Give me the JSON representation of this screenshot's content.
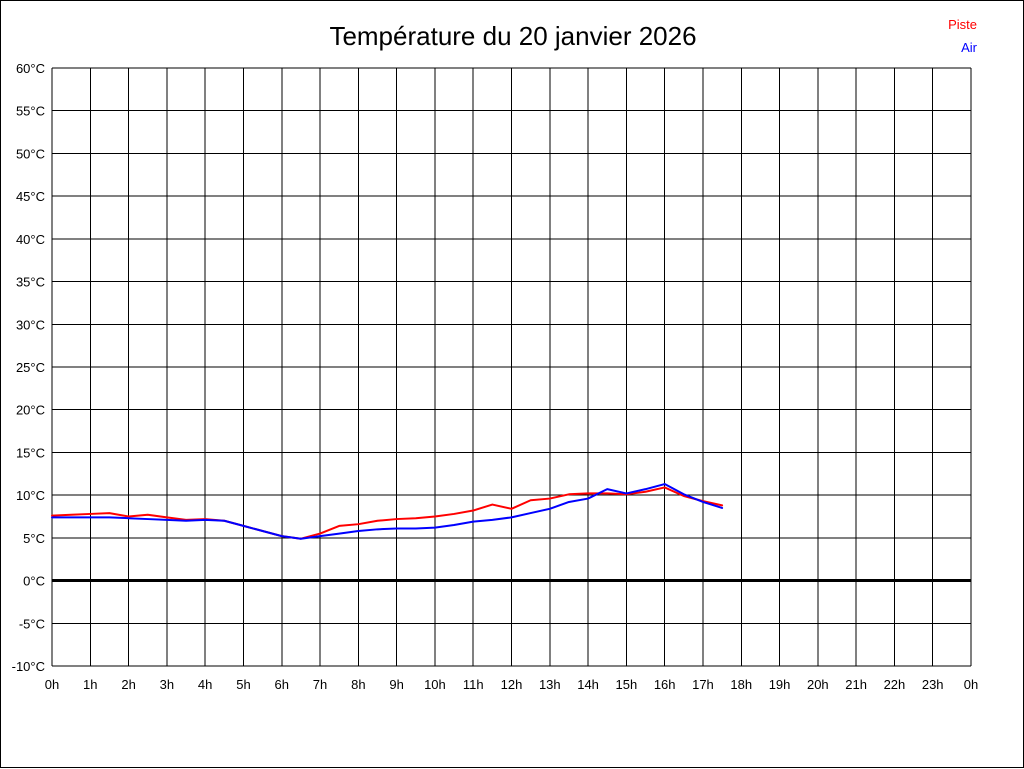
{
  "title": "Température du 20 janvier 2026",
  "legend": {
    "items": [
      {
        "label": "Piste",
        "color": "#ff0000"
      },
      {
        "label": "Air",
        "color": "#0000ff"
      }
    ]
  },
  "chart_data": {
    "type": "line",
    "title": "Température du 20 janvier 2026",
    "xlabel": "",
    "ylabel": "",
    "xlim": [
      0,
      24
    ],
    "ylim": [
      -10,
      60
    ],
    "grid": "on",
    "x_tick_step_hours": 1,
    "y_tick_step_degrees": 5,
    "bold_gridline_at_y": 0,
    "legend_position": "top-right",
    "x_tick_labels": [
      "0h",
      "1h",
      "2h",
      "3h",
      "4h",
      "5h",
      "6h",
      "7h",
      "8h",
      "9h",
      "10h",
      "11h",
      "12h",
      "13h",
      "14h",
      "15h",
      "16h",
      "17h",
      "18h",
      "19h",
      "20h",
      "21h",
      "22h",
      "23h",
      "0h"
    ],
    "y_tick_labels": [
      "60°C",
      "55°C",
      "50°C",
      "45°C",
      "40°C",
      "35°C",
      "30°C",
      "25°C",
      "20°C",
      "15°C",
      "10°C",
      "5°C",
      "0°C",
      "-5°C",
      "-10°C"
    ],
    "x_hours": [
      0,
      0.5,
      1,
      1.5,
      2,
      2.5,
      3,
      3.5,
      4,
      4.5,
      5,
      5.5,
      6,
      6.5,
      7,
      7.5,
      8,
      8.5,
      9,
      9.5,
      10,
      10.5,
      11,
      11.5,
      12,
      12.5,
      13,
      13.5,
      14,
      14.5,
      15,
      15.5,
      16,
      16.5,
      17,
      17.5
    ],
    "series": [
      {
        "name": "Piste",
        "color": "#ff0000",
        "values": [
          7.6,
          7.7,
          7.8,
          7.9,
          7.5,
          7.7,
          7.4,
          7.1,
          7.2,
          7.0,
          6.4,
          5.8,
          5.2,
          4.9,
          5.5,
          6.4,
          6.6,
          7.0,
          7.2,
          7.3,
          7.5,
          7.8,
          8.2,
          8.9,
          8.4,
          9.4,
          9.6,
          10.1,
          10.2,
          10.2,
          10.1,
          10.4,
          10.9,
          9.9,
          9.3,
          8.8
        ]
      },
      {
        "name": "Air",
        "color": "#0000ff",
        "values": [
          7.4,
          7.4,
          7.4,
          7.4,
          7.3,
          7.2,
          7.1,
          7.0,
          7.1,
          7.0,
          6.4,
          5.8,
          5.2,
          4.9,
          5.2,
          5.5,
          5.8,
          6.0,
          6.1,
          6.1,
          6.2,
          6.5,
          6.9,
          7.1,
          7.4,
          7.9,
          8.4,
          9.2,
          9.6,
          10.7,
          10.2,
          10.7,
          11.3,
          10.1,
          9.2,
          8.5
        ]
      }
    ]
  }
}
